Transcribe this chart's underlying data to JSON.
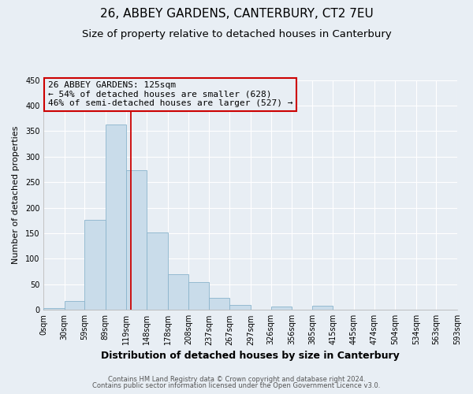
{
  "title": "26, ABBEY GARDENS, CANTERBURY, CT2 7EU",
  "subtitle": "Size of property relative to detached houses in Canterbury",
  "xlabel": "Distribution of detached houses by size in Canterbury",
  "ylabel": "Number of detached properties",
  "bar_color": "#c9dcea",
  "bar_edgecolor": "#8ab4cc",
  "vline_x": 125,
  "vline_color": "#cc0000",
  "annotation_box_text": "26 ABBEY GARDENS: 125sqm\n← 54% of detached houses are smaller (628)\n46% of semi-detached houses are larger (527) →",
  "annotation_box_edgecolor": "#cc0000",
  "footnote1": "Contains HM Land Registry data © Crown copyright and database right 2024.",
  "footnote2": "Contains public sector information licensed under the Open Government Licence v3.0.",
  "bin_edges": [
    0,
    29.5,
    58.5,
    88.5,
    118.5,
    147.5,
    177.5,
    207.5,
    236.5,
    266.5,
    296.5,
    325.5,
    355.5,
    384.5,
    414.5,
    444.5,
    473.5,
    503.5,
    533.5,
    562.5,
    592.5
  ],
  "bar_heights": [
    3,
    18,
    177,
    363,
    273,
    151,
    70,
    55,
    23,
    9,
    0,
    6,
    0,
    8,
    0,
    1,
    0,
    0,
    1,
    1
  ],
  "xtick_labels": [
    "0sqm",
    "30sqm",
    "59sqm",
    "89sqm",
    "119sqm",
    "148sqm",
    "178sqm",
    "208sqm",
    "237sqm",
    "267sqm",
    "297sqm",
    "326sqm",
    "356sqm",
    "385sqm",
    "415sqm",
    "445sqm",
    "474sqm",
    "504sqm",
    "534sqm",
    "563sqm",
    "593sqm"
  ],
  "ylim": [
    0,
    450
  ],
  "yticks": [
    0,
    50,
    100,
    150,
    200,
    250,
    300,
    350,
    400,
    450
  ],
  "outer_bg": "#e8eef4",
  "plot_bg": "#e8eef4",
  "grid_color": "#ffffff",
  "title_fontsize": 11,
  "subtitle_fontsize": 9.5,
  "annotation_fontsize": 8,
  "xlabel_fontsize": 9,
  "ylabel_fontsize": 8,
  "tick_fontsize": 7,
  "footnote_fontsize": 6
}
